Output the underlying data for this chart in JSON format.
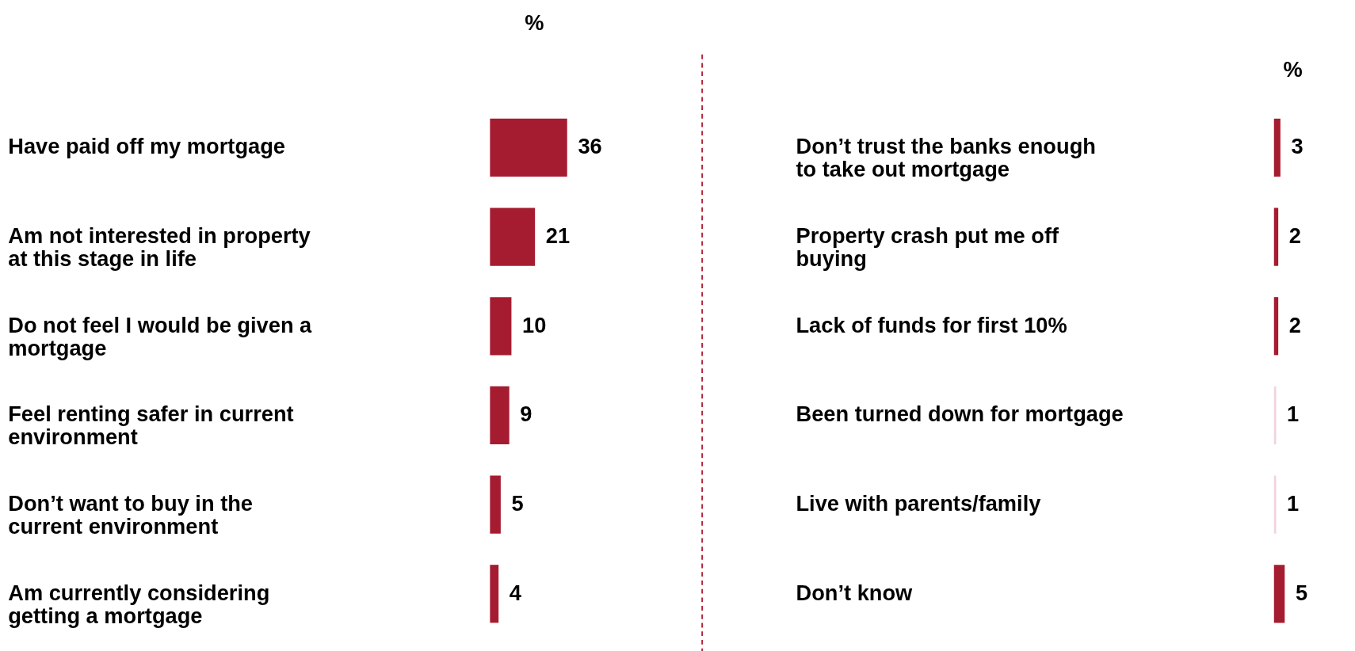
{
  "chart_data": [
    {
      "type": "bar",
      "orientation": "horizontal",
      "title": "%",
      "data_labels": true,
      "categories": [
        "Have paid off my mortgage",
        "Am not interested in property at this stage in life",
        "Do not feel I would be given a mortgage",
        "Feel renting safer in current environment",
        "Don’t want to buy in the current environment",
        "Am currently considering getting a mortgage"
      ],
      "values": [
        36,
        21,
        10,
        9,
        5,
        4
      ],
      "colors": [
        "#a51c30",
        "#a51c30",
        "#a51c30",
        "#a51c30",
        "#a51c30",
        "#a51c30"
      ]
    },
    {
      "type": "bar",
      "orientation": "horizontal",
      "title": "%",
      "data_labels": true,
      "categories": [
        "Don’t trust the banks enough to take out mortgage",
        "Property crash put me off buying",
        "Lack of funds for first 10%",
        "Been turned down for mortgage",
        "Live with parents/family",
        "Don’t know"
      ],
      "values": [
        3,
        2,
        2,
        1,
        1,
        5
      ],
      "colors": [
        "#a51c30",
        "#a51c30",
        "#a51c30",
        "#f0d4d9",
        "#f0d4d9",
        "#a51c30"
      ]
    }
  ]
}
